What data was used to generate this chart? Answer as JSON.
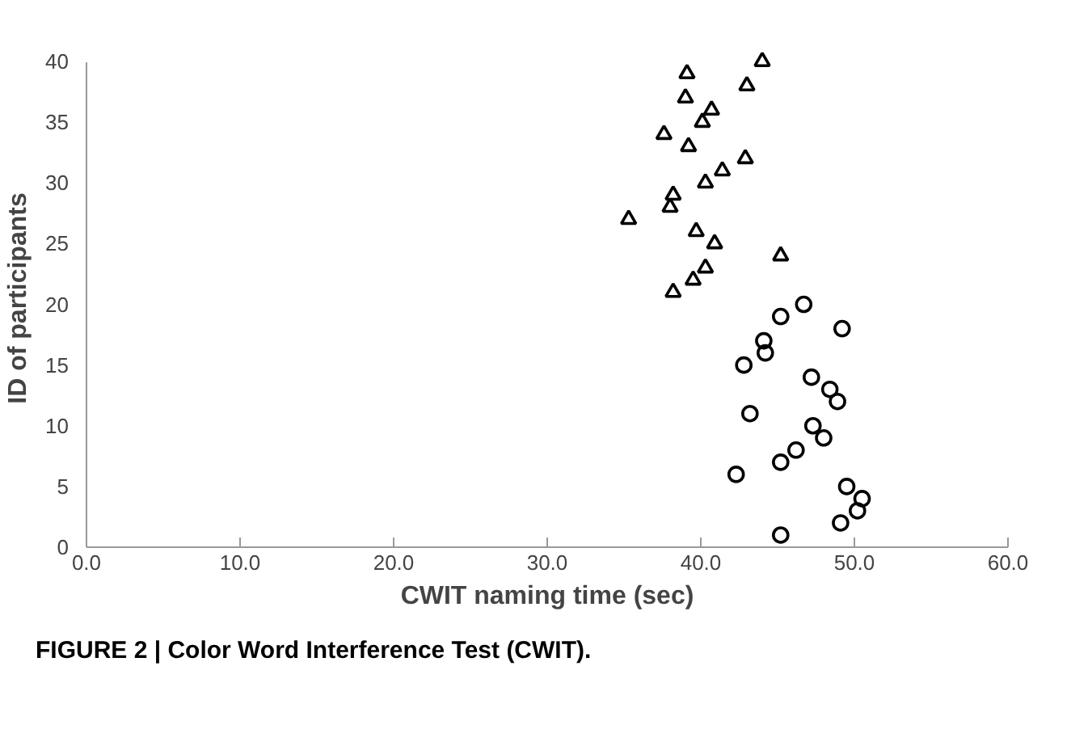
{
  "chart_data": {
    "type": "scatter",
    "xlabel": "CWIT naming time (sec)",
    "ylabel": "ID of participants",
    "xlim": [
      0,
      60
    ],
    "xticks": [
      {
        "value": 0,
        "label": "0.0"
      },
      {
        "value": 10,
        "label": "10.0"
      },
      {
        "value": 20,
        "label": "20.0"
      },
      {
        "value": 30,
        "label": "30.0"
      },
      {
        "value": 40,
        "label": "40.0"
      },
      {
        "value": 50,
        "label": "50.0"
      },
      {
        "value": 60,
        "label": "60.0"
      }
    ],
    "ylim": [
      0,
      40
    ],
    "yticks": [
      0,
      5,
      10,
      15,
      20,
      25,
      30,
      35,
      40
    ],
    "grid": false,
    "series": [
      {
        "color": "#000000",
        "marker": "circle",
        "x": [
          45.2,
          49.1,
          50.2,
          50.5,
          49.5,
          42.3,
          45.2,
          46.2,
          48.0,
          47.3,
          43.2,
          48.9,
          48.4,
          47.2,
          42.8,
          44.2,
          44.1,
          49.2,
          45.2,
          46.7
        ],
        "values": [
          1,
          2,
          3,
          4,
          5,
          6,
          7,
          8,
          9,
          10,
          11,
          12,
          13,
          14,
          15,
          16,
          17,
          18,
          19,
          20
        ]
      },
      {
        "color": "#000000",
        "marker": "triangle",
        "x": [
          38.2,
          39.5,
          40.3,
          45.2,
          40.9,
          39.7,
          35.3,
          38.0,
          38.2,
          40.3,
          41.4,
          42.9,
          39.2,
          37.6,
          40.1,
          40.7,
          39.0,
          43.0,
          39.1,
          44.0
        ],
        "values": [
          21,
          22,
          23,
          24,
          25,
          26,
          27,
          28,
          29,
          30,
          31,
          32,
          33,
          34,
          35,
          36,
          37,
          38,
          39,
          40
        ]
      }
    ],
    "annotations": [
      "FIGURE 2 | Color Word Interference Test (CWIT)."
    ]
  }
}
